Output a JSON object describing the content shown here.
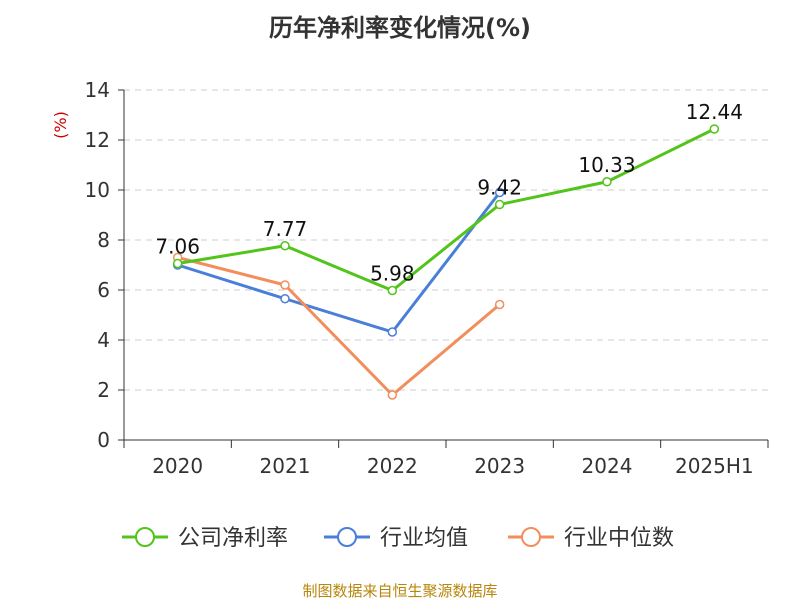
{
  "chart_data": {
    "type": "line",
    "title": "历年净利率变化情况(%)",
    "ylabel": "(%)",
    "xlabel": "",
    "categories": [
      "2020",
      "2021",
      "2022",
      "2023",
      "2024",
      "2025H1"
    ],
    "ylim": [
      0,
      14
    ],
    "yticks": [
      0,
      2,
      4,
      6,
      8,
      10,
      12,
      14
    ],
    "grid": true,
    "legend_position": "bottom",
    "series": [
      {
        "name": "公司净利率",
        "color": "#52c41a",
        "values": [
          7.06,
          7.77,
          5.98,
          9.42,
          10.33,
          12.44
        ],
        "labels": [
          "7.06",
          "7.77",
          "5.98",
          "9.42",
          "10.33",
          "12.44"
        ]
      },
      {
        "name": "行业均值",
        "color": "#4a7fd9",
        "values": [
          7.0,
          5.65,
          4.32,
          9.9,
          null,
          null
        ],
        "labels": []
      },
      {
        "name": "行业中位数",
        "color": "#f28e5b",
        "values": [
          7.3,
          6.2,
          1.8,
          5.42,
          null,
          null
        ],
        "labels": []
      }
    ]
  },
  "footer": {
    "source": "制图数据来自恒生聚源数据库"
  }
}
